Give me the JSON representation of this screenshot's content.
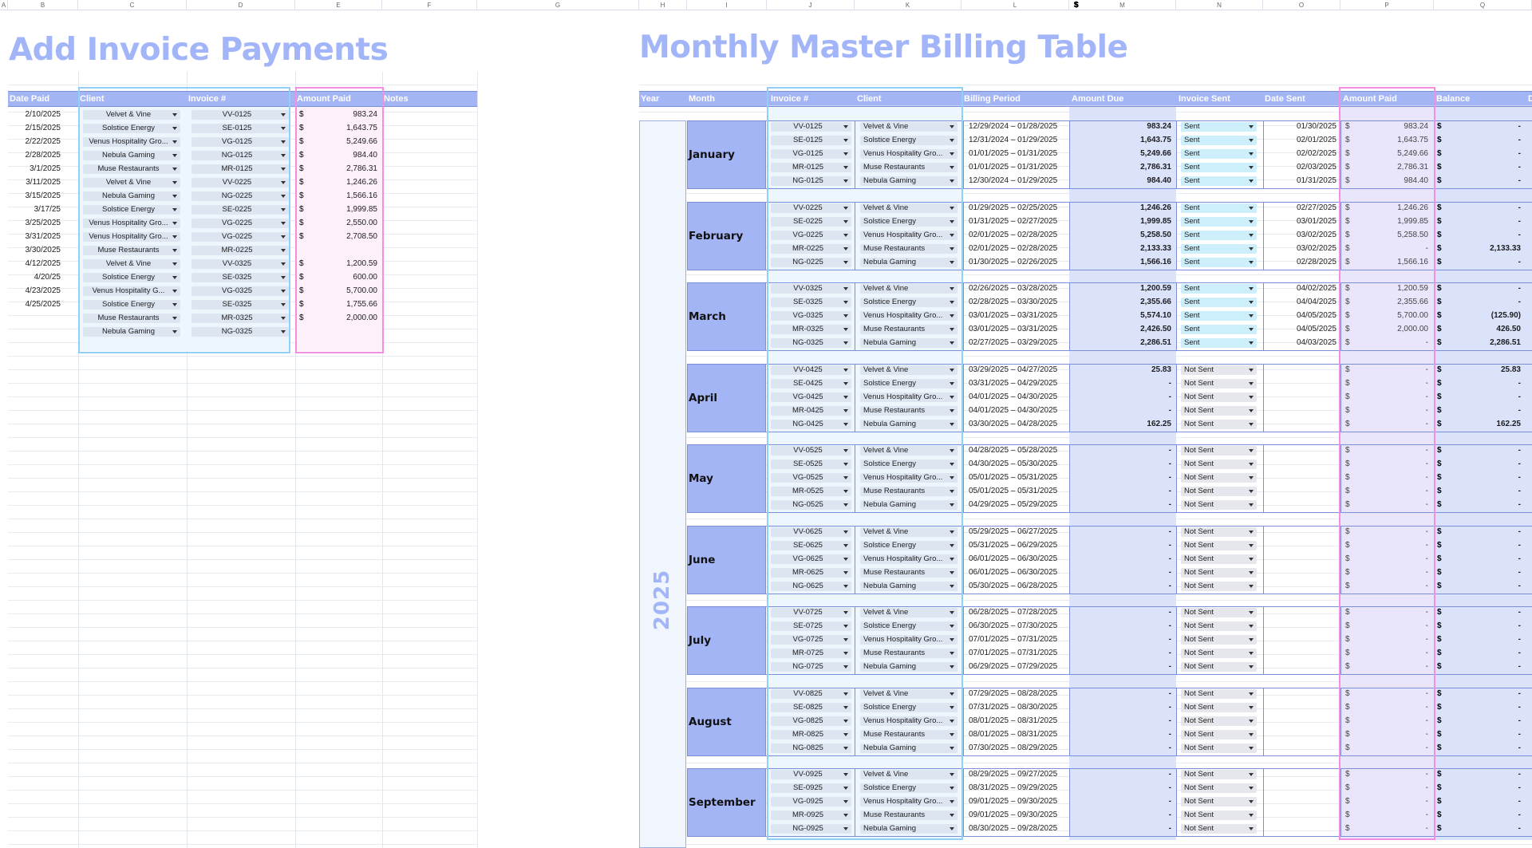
{
  "columns": [
    "A",
    "B",
    "C",
    "D",
    "E",
    "F",
    "G",
    "H",
    "I",
    "J",
    "K",
    "L",
    "M",
    "N",
    "O",
    "P",
    "Q"
  ],
  "left": {
    "title": "Add Invoice Payments",
    "headers": {
      "date": "Date Paid",
      "client": "Client",
      "invoice": "Invoice #",
      "amount": "Amount Paid",
      "notes": "Notes"
    },
    "rows": [
      {
        "date": "2/10/2025",
        "client": "Velvet & Vine",
        "invoice": "VV-0125",
        "cur": "$",
        "amount": "983.24"
      },
      {
        "date": "2/15/2025",
        "client": "Solstice Energy",
        "invoice": "SE-0125",
        "cur": "$",
        "amount": "1,643.75"
      },
      {
        "date": "2/22/2025",
        "client": "Venus Hospitality Gro...",
        "invoice": "VG-0125",
        "cur": "$",
        "amount": "5,249.66"
      },
      {
        "date": "2/28/2025",
        "client": "Nebula Gaming",
        "invoice": "NG-0125",
        "cur": "$",
        "amount": "984.40"
      },
      {
        "date": "3/1/2025",
        "client": "Muse Restaurants",
        "invoice": "MR-0125",
        "cur": "$",
        "amount": "2,786.31"
      },
      {
        "date": "3/11/2025",
        "client": "Velvet & Vine",
        "invoice": "VV-0225",
        "cur": "$",
        "amount": "1,246.26"
      },
      {
        "date": "3/15/2025",
        "client": "Nebula Gaming",
        "invoice": "NG-0225",
        "cur": "$",
        "amount": "1,566.16"
      },
      {
        "date": "3/17/25",
        "client": "Solstice Energy",
        "invoice": "SE-0225",
        "cur": "$",
        "amount": "1,999.85"
      },
      {
        "date": "3/25/2025",
        "client": "Venus Hospitality Gro...",
        "invoice": "VG-0225",
        "cur": "$",
        "amount": "2,550.00"
      },
      {
        "date": "3/31/2025",
        "client": "Venus Hospitality Gro...",
        "invoice": "VG-0225",
        "cur": "$",
        "amount": "2,708.50"
      },
      {
        "date": "3/30/2025",
        "client": "Muse Restaurants",
        "invoice": "MR-0225",
        "cur": "",
        "amount": ""
      },
      {
        "date": "4/12/2025",
        "client": "Velvet & Vine",
        "invoice": "VV-0325",
        "cur": "$",
        "amount": "1,200.59"
      },
      {
        "date": "4/20/25",
        "client": "Solstice Energy",
        "invoice": "SE-0325",
        "cur": "$",
        "amount": "600.00"
      },
      {
        "date": "4/23/2025",
        "client": "Venus Hospitality G...",
        "invoice": "VG-0325",
        "cur": "$",
        "amount": "5,700.00"
      },
      {
        "date": "4/25/2025",
        "client": "Solstice Energy",
        "invoice": "SE-0325",
        "cur": "$",
        "amount": "1,755.66"
      },
      {
        "date": "",
        "client": "Muse Restaurants",
        "invoice": "MR-0325",
        "cur": "$",
        "amount": "2,000.00"
      },
      {
        "date": "",
        "client": "Nebula Gaming",
        "invoice": "NG-0325",
        "cur": "",
        "amount": ""
      }
    ]
  },
  "right": {
    "title": "Monthly Master Billing Table",
    "headers": {
      "year": "Year",
      "month": "Month",
      "invoice": "Invoice #",
      "client": "Client",
      "period": "Billing Period",
      "due": "Amount Due",
      "sent": "Invoice Sent",
      "datesent": "Date Sent",
      "paid": "Amount Paid",
      "balance": "Balance",
      "extra": "D"
    },
    "year": "2025",
    "months": [
      {
        "name": "January",
        "rows": [
          {
            "inv": "VV-0125",
            "client": "Velvet & Vine",
            "period": "12/29/2024 – 01/28/2025",
            "due": "983.24",
            "sent": "Sent",
            "date": "01/30/2025",
            "paid": "983.24",
            "bal": "-"
          },
          {
            "inv": "SE-0125",
            "client": "Solstice Energy",
            "period": "12/31/2024 – 01/29/2025",
            "due": "1,643.75",
            "sent": "Sent",
            "date": "02/01/2025",
            "paid": "1,643.75",
            "bal": "-"
          },
          {
            "inv": "VG-0125",
            "client": "Venus Hospitality Gro...",
            "period": "01/01/2025 – 01/31/2025",
            "due": "5,249.66",
            "sent": "Sent",
            "date": "02/02/2025",
            "paid": "5,249.66",
            "bal": "-"
          },
          {
            "inv": "MR-0125",
            "client": "Muse Restaurants",
            "period": "01/01/2025 – 01/31/2025",
            "due": "2,786.31",
            "sent": "Sent",
            "date": "02/03/2025",
            "paid": "2,786.31",
            "bal": "-"
          },
          {
            "inv": "NG-0125",
            "client": "Nebula Gaming",
            "period": "12/30/2024 – 01/29/2025",
            "due": "984.40",
            "sent": "Sent",
            "date": "01/31/2025",
            "paid": "984.40",
            "bal": "-"
          }
        ]
      },
      {
        "name": "February",
        "rows": [
          {
            "inv": "VV-0225",
            "client": "Velvet & Vine",
            "period": "01/29/2025 – 02/25/2025",
            "due": "1,246.26",
            "sent": "Sent",
            "date": "02/27/2025",
            "paid": "1,246.26",
            "bal": "-"
          },
          {
            "inv": "SE-0225",
            "client": "Solstice Energy",
            "period": "01/31/2025 – 02/27/2025",
            "due": "1,999.85",
            "sent": "Sent",
            "date": "03/01/2025",
            "paid": "1,999.85",
            "bal": "-"
          },
          {
            "inv": "VG-0225",
            "client": "Venus Hospitality Gro...",
            "period": "02/01/2025 – 02/28/2025",
            "due": "5,258.50",
            "sent": "Sent",
            "date": "03/02/2025",
            "paid": "5,258.50",
            "bal": "-"
          },
          {
            "inv": "MR-0225",
            "client": "Muse Restaurants",
            "period": "02/01/2025 – 02/28/2025",
            "due": "2,133.33",
            "sent": "Sent",
            "date": "03/02/2025",
            "paid": "-",
            "bal": "2,133.33"
          },
          {
            "inv": "NG-0225",
            "client": "Nebula Gaming",
            "period": "01/30/2025 – 02/26/2025",
            "due": "1,566.16",
            "sent": "Sent",
            "date": "02/28/2025",
            "paid": "1,566.16",
            "bal": "-"
          }
        ]
      },
      {
        "name": "March",
        "rows": [
          {
            "inv": "VV-0325",
            "client": "Velvet & Vine",
            "period": "02/26/2025 – 03/28/2025",
            "due": "1,200.59",
            "sent": "Sent",
            "date": "04/02/2025",
            "paid": "1,200.59",
            "bal": "-"
          },
          {
            "inv": "SE-0325",
            "client": "Solstice Energy",
            "period": "02/28/2025 – 03/30/2025",
            "due": "2,355.66",
            "sent": "Sent",
            "date": "04/04/2025",
            "paid": "2,355.66",
            "bal": "-"
          },
          {
            "inv": "VG-0325",
            "client": "Venus Hospitality Gro...",
            "period": "03/01/2025 – 03/31/2025",
            "due": "5,574.10",
            "sent": "Sent",
            "date": "04/05/2025",
            "paid": "5,700.00",
            "bal": "(125.90)"
          },
          {
            "inv": "MR-0325",
            "client": "Muse Restaurants",
            "period": "03/01/2025 – 03/31/2025",
            "due": "2,426.50",
            "sent": "Sent",
            "date": "04/05/2025",
            "paid": "2,000.00",
            "bal": "426.50"
          },
          {
            "inv": "NG-0325",
            "client": "Nebula Gaming",
            "period": "02/27/2025 – 03/29/2025",
            "due": "2,286.51",
            "sent": "Sent",
            "date": "04/03/2025",
            "paid": "-",
            "bal": "2,286.51"
          }
        ]
      },
      {
        "name": "April",
        "rows": [
          {
            "inv": "VV-0425",
            "client": "Velvet & Vine",
            "period": "03/29/2025 – 04/27/2025",
            "due": "25.83",
            "sent": "Not Sent",
            "date": "",
            "paid": "-",
            "bal": "25.83"
          },
          {
            "inv": "SE-0425",
            "client": "Solstice Energy",
            "period": "03/31/2025 – 04/29/2025",
            "due": "-",
            "sent": "Not Sent",
            "date": "",
            "paid": "-",
            "bal": "-"
          },
          {
            "inv": "VG-0425",
            "client": "Venus Hospitality Gro...",
            "period": "04/01/2025 – 04/30/2025",
            "due": "-",
            "sent": "Not Sent",
            "date": "",
            "paid": "-",
            "bal": "-"
          },
          {
            "inv": "MR-0425",
            "client": "Muse Restaurants",
            "period": "04/01/2025 – 04/30/2025",
            "due": "-",
            "sent": "Not Sent",
            "date": "",
            "paid": "-",
            "bal": "-"
          },
          {
            "inv": "NG-0425",
            "client": "Nebula Gaming",
            "period": "03/30/2025 – 04/28/2025",
            "due": "162.25",
            "sent": "Not Sent",
            "date": "",
            "paid": "-",
            "bal": "162.25"
          }
        ]
      },
      {
        "name": "May",
        "rows": [
          {
            "inv": "VV-0525",
            "client": "Velvet & Vine",
            "period": "04/28/2025 – 05/28/2025",
            "due": "-",
            "sent": "Not Sent",
            "date": "",
            "paid": "-",
            "bal": "-"
          },
          {
            "inv": "SE-0525",
            "client": "Solstice Energy",
            "period": "04/30/2025 – 05/30/2025",
            "due": "-",
            "sent": "Not Sent",
            "date": "",
            "paid": "-",
            "bal": "-"
          },
          {
            "inv": "VG-0525",
            "client": "Venus Hospitality Gro...",
            "period": "05/01/2025 – 05/31/2025",
            "due": "-",
            "sent": "Not Sent",
            "date": "",
            "paid": "-",
            "bal": "-"
          },
          {
            "inv": "MR-0525",
            "client": "Muse Restaurants",
            "period": "05/01/2025 – 05/31/2025",
            "due": "-",
            "sent": "Not Sent",
            "date": "",
            "paid": "-",
            "bal": "-"
          },
          {
            "inv": "NG-0525",
            "client": "Nebula Gaming",
            "period": "04/29/2025 – 05/29/2025",
            "due": "-",
            "sent": "Not Sent",
            "date": "",
            "paid": "-",
            "bal": "-"
          }
        ]
      },
      {
        "name": "June",
        "rows": [
          {
            "inv": "VV-0625",
            "client": "Velvet & Vine",
            "period": "05/29/2025 – 06/27/2025",
            "due": "-",
            "sent": "Not Sent",
            "date": "",
            "paid": "-",
            "bal": "-"
          },
          {
            "inv": "SE-0625",
            "client": "Solstice Energy",
            "period": "05/31/2025 – 06/29/2025",
            "due": "-",
            "sent": "Not Sent",
            "date": "",
            "paid": "-",
            "bal": "-"
          },
          {
            "inv": "VG-0625",
            "client": "Venus Hospitality Gro...",
            "period": "06/01/2025 – 06/30/2025",
            "due": "-",
            "sent": "Not Sent",
            "date": "",
            "paid": "-",
            "bal": "-"
          },
          {
            "inv": "MR-0625",
            "client": "Muse Restaurants",
            "period": "06/01/2025 – 06/30/2025",
            "due": "-",
            "sent": "Not Sent",
            "date": "",
            "paid": "-",
            "bal": "-"
          },
          {
            "inv": "NG-0625",
            "client": "Nebula Gaming",
            "period": "05/30/2025 – 06/28/2025",
            "due": "-",
            "sent": "Not Sent",
            "date": "",
            "paid": "-",
            "bal": "-"
          }
        ]
      },
      {
        "name": "July",
        "rows": [
          {
            "inv": "VV-0725",
            "client": "Velvet & Vine",
            "period": "06/28/2025 – 07/28/2025",
            "due": "-",
            "sent": "Not Sent",
            "date": "",
            "paid": "-",
            "bal": "-"
          },
          {
            "inv": "SE-0725",
            "client": "Solstice Energy",
            "period": "06/30/2025 – 07/30/2025",
            "due": "-",
            "sent": "Not Sent",
            "date": "",
            "paid": "-",
            "bal": "-"
          },
          {
            "inv": "VG-0725",
            "client": "Venus Hospitality Gro...",
            "period": "07/01/2025 – 07/31/2025",
            "due": "-",
            "sent": "Not Sent",
            "date": "",
            "paid": "-",
            "bal": "-"
          },
          {
            "inv": "MR-0725",
            "client": "Muse Restaurants",
            "period": "07/01/2025 – 07/31/2025",
            "due": "-",
            "sent": "Not Sent",
            "date": "",
            "paid": "-",
            "bal": "-"
          },
          {
            "inv": "NG-0725",
            "client": "Nebula Gaming",
            "period": "06/29/2025 – 07/29/2025",
            "due": "-",
            "sent": "Not Sent",
            "date": "",
            "paid": "-",
            "bal": "-"
          }
        ]
      },
      {
        "name": "August",
        "rows": [
          {
            "inv": "VV-0825",
            "client": "Velvet & Vine",
            "period": "07/29/2025 – 08/28/2025",
            "due": "-",
            "sent": "Not Sent",
            "date": "",
            "paid": "-",
            "bal": "-"
          },
          {
            "inv": "SE-0825",
            "client": "Solstice Energy",
            "period": "07/31/2025 – 08/30/2025",
            "due": "-",
            "sent": "Not Sent",
            "date": "",
            "paid": "-",
            "bal": "-"
          },
          {
            "inv": "VG-0825",
            "client": "Venus Hospitality Gro...",
            "period": "08/01/2025 – 08/31/2025",
            "due": "-",
            "sent": "Not Sent",
            "date": "",
            "paid": "-",
            "bal": "-"
          },
          {
            "inv": "MR-0825",
            "client": "Muse Restaurants",
            "period": "08/01/2025 – 08/31/2025",
            "due": "-",
            "sent": "Not Sent",
            "date": "",
            "paid": "-",
            "bal": "-"
          },
          {
            "inv": "NG-0825",
            "client": "Nebula Gaming",
            "period": "07/30/2025 – 08/29/2025",
            "due": "-",
            "sent": "Not Sent",
            "date": "",
            "paid": "-",
            "bal": "-"
          }
        ]
      },
      {
        "name": "September",
        "rows": [
          {
            "inv": "VV-0925",
            "client": "Velvet & Vine",
            "period": "08/29/2025 – 09/27/2025",
            "due": "-",
            "sent": "Not Sent",
            "date": "",
            "paid": "-",
            "bal": "-"
          },
          {
            "inv": "SE-0925",
            "client": "Solstice Energy",
            "period": "08/31/2025 – 09/29/2025",
            "due": "-",
            "sent": "Not Sent",
            "date": "",
            "paid": "-",
            "bal": "-"
          },
          {
            "inv": "VG-0925",
            "client": "Venus Hospitality Gro...",
            "period": "09/01/2025 – 09/30/2025",
            "due": "-",
            "sent": "Not Sent",
            "date": "",
            "paid": "-",
            "bal": "-"
          },
          {
            "inv": "MR-0925",
            "client": "Muse Restaurants",
            "period": "09/01/2025 – 09/30/2025",
            "due": "-",
            "sent": "Not Sent",
            "date": "",
            "paid": "-",
            "bal": "-"
          },
          {
            "inv": "NG-0925",
            "client": "Nebula Gaming",
            "period": "08/30/2025 – 09/28/2025",
            "due": "-",
            "sent": "Not Sent",
            "date": "",
            "paid": "-",
            "bal": "-"
          }
        ]
      }
    ]
  },
  "colors": {
    "header": "#a4b5f6",
    "title": "#a3b5f9",
    "invoice_outline": "#8fcff8",
    "paid_outline": "#f48ee0",
    "sent": "#cdeefb",
    "not_sent": "#e6e7ec"
  }
}
